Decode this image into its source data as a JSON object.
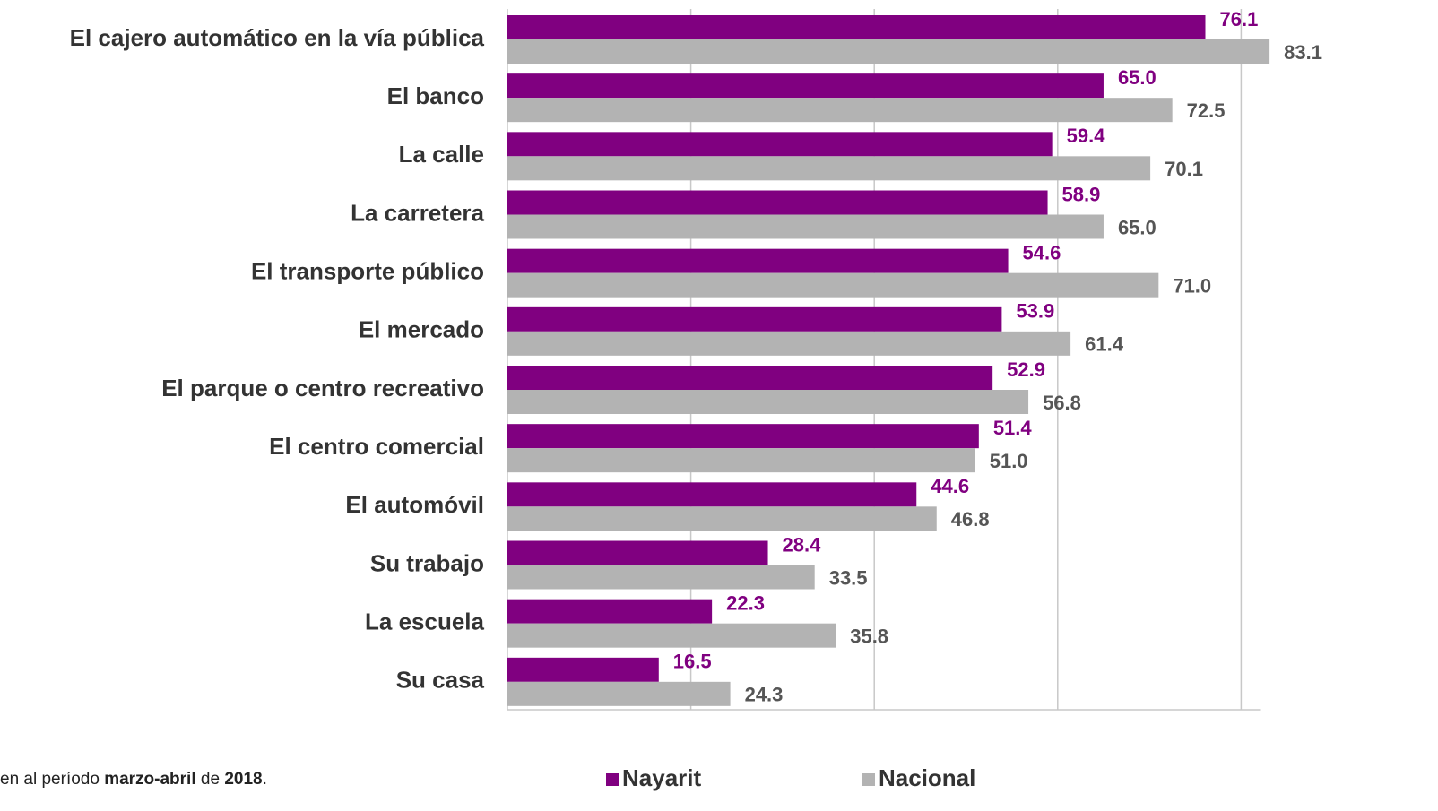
{
  "chart_data": {
    "type": "bar",
    "orientation": "horizontal",
    "categories": [
      "El cajero automático en la vía pública",
      "El banco",
      "La calle",
      "La carretera",
      "El transporte público",
      "El mercado",
      "El parque o centro recreativo",
      "El centro comercial",
      "El automóvil",
      "Su trabajo",
      "La escuela",
      "Su casa"
    ],
    "series": [
      {
        "name": "Nayarit",
        "color": "#800080",
        "values": [
          76.1,
          65.0,
          59.4,
          58.9,
          54.6,
          53.9,
          52.9,
          51.4,
          44.6,
          28.4,
          22.3,
          16.5
        ],
        "value_labels": [
          "76.1",
          "65.0",
          "59.4",
          "58.9",
          "54.6",
          "53.9",
          "52.9",
          "51.4",
          "44.6",
          "28.4",
          "22.3",
          "16.5"
        ]
      },
      {
        "name": "Nacional",
        "color": "#b3b3b3",
        "values": [
          83.1,
          72.5,
          70.1,
          65.0,
          71.0,
          61.4,
          56.8,
          51.0,
          46.8,
          33.5,
          35.8,
          24.3
        ],
        "value_labels": [
          "83.1",
          "72.5",
          "70.1",
          "65.0",
          "71.0",
          "61.4",
          "56.8",
          "51.0",
          "46.8",
          "33.5",
          "35.8",
          "24.3"
        ]
      }
    ],
    "xlim": [
      0,
      100
    ],
    "xticks": [
      0,
      20,
      40,
      60,
      80
    ],
    "grid": true,
    "note": [
      "en al período ",
      "marzo-abril",
      " de ",
      "2018",
      "."
    ]
  }
}
